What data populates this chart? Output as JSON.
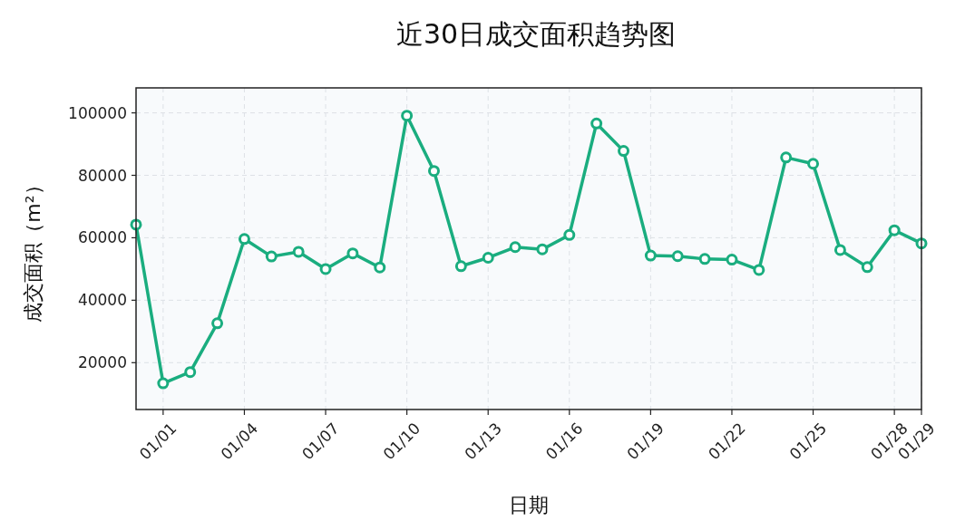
{
  "chart_data": {
    "type": "line",
    "title": "近30日成交面积趋势图",
    "xlabel": "日期",
    "ylabel": "成交面积（m²）",
    "categories": [
      null,
      "01/01",
      null,
      null,
      "01/04",
      null,
      null,
      "01/07",
      null,
      null,
      "01/10",
      null,
      null,
      "01/13",
      null,
      null,
      "01/16",
      null,
      null,
      "01/19",
      null,
      null,
      "01/22",
      null,
      null,
      "01/25",
      null,
      null,
      "01/28",
      "01/29"
    ],
    "series": [
      {
        "color": "#1aad7f",
        "values": [
          64200,
          13400,
          17000,
          32600,
          59600,
          54000,
          55500,
          50000,
          55000,
          50500,
          99100,
          81400,
          50900,
          53600,
          57000,
          56300,
          60900,
          96600,
          87800,
          54300,
          54100,
          53200,
          53000,
          49700,
          85700,
          83700,
          56100,
          50600,
          62400,
          58200
        ]
      }
    ],
    "ylim": [
      5000,
      108000
    ],
    "yticks": [
      20000,
      40000,
      60000,
      80000,
      100000
    ],
    "grid": true,
    "marker": "circle",
    "line_style": "solid"
  }
}
